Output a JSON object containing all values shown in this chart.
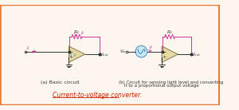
{
  "bg_color": "#fdf6ee",
  "border_color": "#e87a3a",
  "border_lw": 2.5,
  "title_text": "Current-to-voltage converter.",
  "title_color": "#cc2200",
  "title_fontsize": 5.5,
  "label_a": "(a) Basic circuit",
  "label_b_line1": "(b) Circuit for sensing light level and converting",
  "label_b_line2": "    it to a proportional output voltage",
  "label_fontsize": 4.5,
  "wire_color": "#333333",
  "feedback_color": "#cc3399",
  "opamp_fill": "#e8d9a0",
  "photodiode_color": "#5599cc",
  "ground_color": "#333333"
}
